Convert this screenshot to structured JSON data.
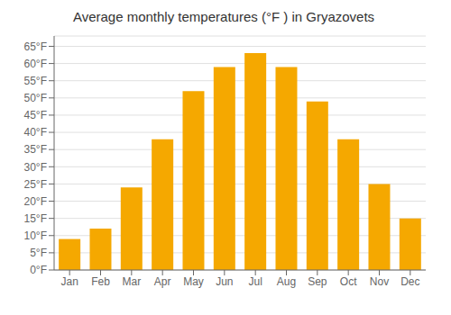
{
  "chart_data": {
    "type": "bar",
    "title": "Average monthly temperatures (°F ) in Gryazovets",
    "categories": [
      "Jan",
      "Feb",
      "Mar",
      "Apr",
      "May",
      "Jun",
      "Jul",
      "Aug",
      "Sep",
      "Oct",
      "Nov",
      "Dec"
    ],
    "values": [
      9,
      12,
      24,
      38,
      52,
      59,
      63,
      59,
      49,
      38,
      25,
      15
    ],
    "color": "#F5A800",
    "ylim": [
      0,
      68
    ],
    "yticks": [
      {
        "value": 0,
        "label": "0°F"
      },
      {
        "value": 5,
        "label": "5°F"
      },
      {
        "value": 10,
        "label": "10°F"
      },
      {
        "value": 15,
        "label": "15°F"
      },
      {
        "value": 20,
        "label": "20°F"
      },
      {
        "value": 25,
        "label": "25°F"
      },
      {
        "value": 30,
        "label": "30°F"
      },
      {
        "value": 35,
        "label": "35°F"
      },
      {
        "value": 40,
        "label": "40°F"
      },
      {
        "value": 45,
        "label": "45°F"
      },
      {
        "value": 50,
        "label": "50°F"
      },
      {
        "value": 55,
        "label": "55°F"
      },
      {
        "value": 60,
        "label": "60°F"
      },
      {
        "value": 65,
        "label": "65°F"
      }
    ],
    "grid": true
  }
}
